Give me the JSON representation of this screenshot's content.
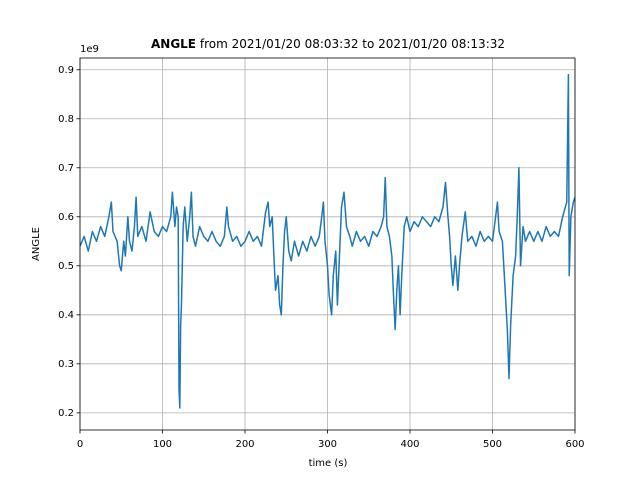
{
  "chart_data": {
    "type": "line",
    "title_parts": [
      "ANGLE",
      "from 2021/01/20 08:03:32 to 2021/01/20 08:13:32"
    ],
    "x_label": "time (s)",
    "y_label": "ANGLE",
    "y_offset_label": "1e9",
    "xlim": [
      0,
      600
    ],
    "ylim": [
      0.165,
      0.924
    ],
    "xticks": [
      0,
      100,
      200,
      300,
      400,
      500,
      600
    ],
    "yticks": [
      0.2,
      0.3,
      0.4,
      0.5,
      0.6,
      0.7,
      0.8,
      0.9
    ],
    "grid": true,
    "series": [
      {
        "name": "ANGLE",
        "color": "#1f77b4",
        "x": [
          0,
          5,
          10,
          15,
          20,
          25,
          30,
          35,
          38,
          40,
          45,
          48,
          50,
          53,
          55,
          58,
          60,
          63,
          66,
          68,
          70,
          75,
          80,
          85,
          90,
          95,
          100,
          105,
          110,
          112,
          115,
          117,
          119,
          120,
          121,
          122,
          123,
          125,
          127,
          130,
          133,
          135,
          137,
          140,
          145,
          150,
          155,
          160,
          165,
          170,
          175,
          178,
          180,
          185,
          190,
          195,
          200,
          205,
          210,
          215,
          220,
          225,
          228,
          230,
          233,
          235,
          237,
          240,
          242,
          244,
          246,
          248,
          250,
          253,
          256,
          260,
          265,
          270,
          275,
          280,
          285,
          290,
          293,
          295,
          297,
          300,
          302,
          305,
          307,
          310,
          312,
          314,
          317,
          320,
          323,
          327,
          330,
          335,
          340,
          345,
          350,
          355,
          360,
          365,
          368,
          370,
          372,
          375,
          378,
          380,
          382,
          384,
          386,
          388,
          390,
          393,
          396,
          400,
          405,
          410,
          415,
          420,
          425,
          430,
          435,
          440,
          443,
          446,
          448,
          450,
          452,
          455,
          458,
          460,
          463,
          467,
          470,
          475,
          480,
          485,
          490,
          495,
          500,
          503,
          506,
          508,
          512,
          515,
          518,
          520,
          522,
          525,
          528,
          530,
          532,
          534,
          537,
          540,
          545,
          550,
          555,
          560,
          565,
          570,
          575,
          580,
          585,
          590,
          592,
          593,
          595,
          598,
          600
        ],
        "values": [
          0.54,
          0.56,
          0.53,
          0.57,
          0.55,
          0.58,
          0.56,
          0.6,
          0.63,
          0.57,
          0.55,
          0.5,
          0.49,
          0.55,
          0.52,
          0.6,
          0.55,
          0.53,
          0.58,
          0.64,
          0.56,
          0.58,
          0.55,
          0.61,
          0.57,
          0.56,
          0.58,
          0.57,
          0.6,
          0.65,
          0.58,
          0.62,
          0.6,
          0.25,
          0.21,
          0.38,
          0.42,
          0.58,
          0.62,
          0.55,
          0.6,
          0.65,
          0.56,
          0.54,
          0.58,
          0.56,
          0.55,
          0.57,
          0.55,
          0.54,
          0.56,
          0.62,
          0.58,
          0.55,
          0.56,
          0.54,
          0.55,
          0.57,
          0.55,
          0.56,
          0.54,
          0.61,
          0.63,
          0.58,
          0.6,
          0.52,
          0.45,
          0.48,
          0.42,
          0.4,
          0.5,
          0.57,
          0.6,
          0.53,
          0.51,
          0.55,
          0.52,
          0.55,
          0.53,
          0.56,
          0.54,
          0.56,
          0.6,
          0.63,
          0.55,
          0.5,
          0.44,
          0.4,
          0.48,
          0.53,
          0.42,
          0.5,
          0.62,
          0.65,
          0.58,
          0.56,
          0.54,
          0.57,
          0.55,
          0.56,
          0.54,
          0.57,
          0.56,
          0.58,
          0.6,
          0.68,
          0.58,
          0.56,
          0.52,
          0.44,
          0.37,
          0.45,
          0.5,
          0.4,
          0.48,
          0.58,
          0.6,
          0.57,
          0.59,
          0.58,
          0.6,
          0.59,
          0.58,
          0.6,
          0.59,
          0.62,
          0.67,
          0.6,
          0.56,
          0.5,
          0.46,
          0.52,
          0.45,
          0.5,
          0.56,
          0.61,
          0.55,
          0.56,
          0.54,
          0.57,
          0.55,
          0.56,
          0.55,
          0.59,
          0.63,
          0.57,
          0.55,
          0.46,
          0.37,
          0.27,
          0.38,
          0.48,
          0.52,
          0.6,
          0.7,
          0.5,
          0.58,
          0.55,
          0.57,
          0.55,
          0.57,
          0.55,
          0.58,
          0.56,
          0.57,
          0.56,
          0.6,
          0.63,
          0.89,
          0.48,
          0.6,
          0.63,
          0.64
        ]
      }
    ]
  }
}
